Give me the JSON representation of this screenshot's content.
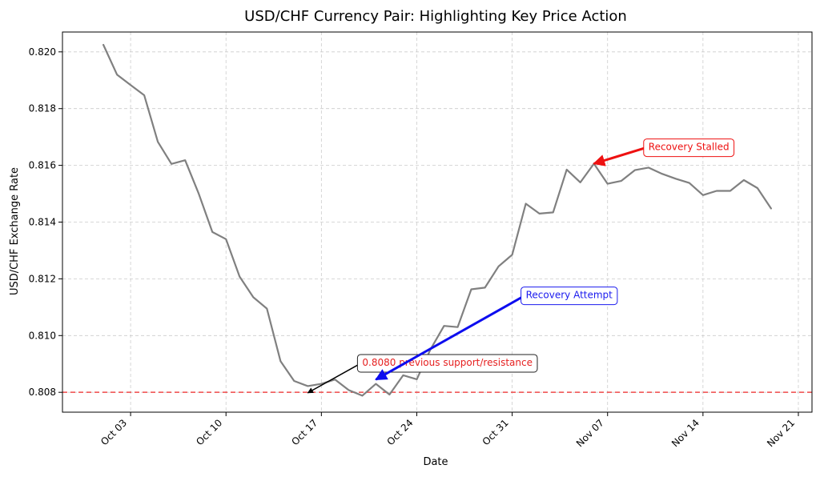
{
  "chart_data": {
    "type": "line",
    "title": "USD/CHF Currency Pair: Highlighting Key Price Action",
    "xlabel": "Date",
    "ylabel": "USD/CHF Exchange Rate",
    "grid": true,
    "x_axis_kind": "date",
    "xlim": [
      "2023-09-28",
      "2023-11-22"
    ],
    "ylim": [
      0.8073,
      0.8207
    ],
    "x_ticks": [
      {
        "date": "2023-10-03",
        "label": "Oct 03"
      },
      {
        "date": "2023-10-10",
        "label": "Oct 10"
      },
      {
        "date": "2023-10-17",
        "label": "Oct 17"
      },
      {
        "date": "2023-10-24",
        "label": "Oct 24"
      },
      {
        "date": "2023-10-31",
        "label": "Oct 31"
      },
      {
        "date": "2023-11-07",
        "label": "Nov 07"
      },
      {
        "date": "2023-11-14",
        "label": "Nov 14"
      },
      {
        "date": "2023-11-21",
        "label": "Nov 21"
      }
    ],
    "y_ticks": [
      0.808,
      0.81,
      0.812,
      0.814,
      0.816,
      0.818,
      0.82
    ],
    "series": [
      {
        "color": "#808080",
        "x": [
          "2023-10-01",
          "2023-10-02",
          "2023-10-03",
          "2023-10-04",
          "2023-10-05",
          "2023-10-06",
          "2023-10-07",
          "2023-10-08",
          "2023-10-09",
          "2023-10-10",
          "2023-10-11",
          "2023-10-12",
          "2023-10-13",
          "2023-10-14",
          "2023-10-15",
          "2023-10-16",
          "2023-10-17",
          "2023-10-18",
          "2023-10-19",
          "2023-10-20",
          "2023-10-21",
          "2023-10-22",
          "2023-10-23",
          "2023-10-24",
          "2023-10-25",
          "2023-10-26",
          "2023-10-27",
          "2023-10-28",
          "2023-10-29",
          "2023-10-30",
          "2023-10-31",
          "2023-11-01",
          "2023-11-02",
          "2023-11-03",
          "2023-11-04",
          "2023-11-05",
          "2023-11-06",
          "2023-11-07",
          "2023-11-08",
          "2023-11-09",
          "2023-11-10",
          "2023-11-11",
          "2023-11-12",
          "2023-11-13",
          "2023-11-14",
          "2023-11-15",
          "2023-11-16",
          "2023-11-17",
          "2023-11-18",
          "2023-11-19"
        ],
        "y": [
          0.82025,
          0.8192,
          0.81883,
          0.81847,
          0.81683,
          0.81605,
          0.81618,
          0.815,
          0.81365,
          0.8134,
          0.81208,
          0.81135,
          0.81095,
          0.8091,
          0.8084,
          0.80822,
          0.8083,
          0.80845,
          0.80808,
          0.80788,
          0.8083,
          0.80792,
          0.8086,
          0.80846,
          0.80951,
          0.81034,
          0.8103,
          0.81163,
          0.81169,
          0.81244,
          0.81285,
          0.81465,
          0.8143,
          0.81434,
          0.81585,
          0.8154,
          0.81606,
          0.81535,
          0.81545,
          0.81583,
          0.81592,
          0.8157,
          0.81553,
          0.81538,
          0.81495,
          0.8151,
          0.8151,
          0.81548,
          0.8152,
          0.81448
        ]
      }
    ],
    "reference_lines": [
      {
        "orientation": "horizontal",
        "y": 0.808,
        "color": "#f04a4a",
        "style": "dashed"
      }
    ],
    "annotations": [
      {
        "text": "0.8080 previous support/resistance",
        "color": "#e62020",
        "border": "#222222",
        "arrow_color": "#000000",
        "box_date": "2023-10-20",
        "box_value": 0.80905,
        "arrow_to_date": "2023-10-16",
        "arrow_to_value": 0.80798
      },
      {
        "text": "Recovery Attempt",
        "color": "#1a1aee",
        "border": "#1a1aee",
        "arrow_color": "#0d0def",
        "box_date": "2023-11-01",
        "box_value": 0.81143,
        "arrow_to_date": "2023-10-21",
        "arrow_to_value": 0.80845
      },
      {
        "text": "Recovery Stalled",
        "color": "#ee1111",
        "border": "#ee1111",
        "arrow_color": "#ee1111",
        "box_date": "2023-11-10",
        "box_value": 0.81665,
        "arrow_to_date": "2023-11-06",
        "arrow_to_value": 0.81606
      }
    ]
  }
}
